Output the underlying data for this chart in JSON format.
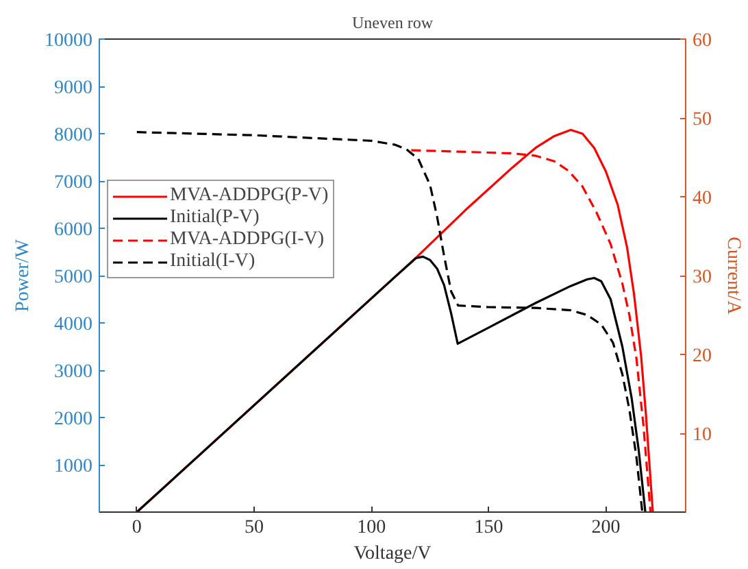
{
  "chart_data": {
    "type": "line",
    "title": "Uneven row",
    "xlabel": "Voltage/V",
    "ylabel": "Power/W",
    "y2label": "Current/A",
    "xlim": [
      -16,
      234
    ],
    "xticks": [
      0,
      50,
      100,
      150,
      200
    ],
    "ylim": [
      0,
      10000
    ],
    "yticks": [
      1000,
      2000,
      3000,
      4000,
      5000,
      6000,
      7000,
      8000,
      9000,
      10000
    ],
    "y2lim": [
      0,
      60
    ],
    "y2ticks": [
      10,
      20,
      30,
      40,
      50,
      60
    ],
    "grid": false,
    "legend": "top left",
    "series": [
      {
        "name": "MVA-ADDPG(P-V)",
        "color": "#ff0000",
        "line_style": "solid",
        "x": [
          0,
          119.5,
          140,
          160,
          170,
          178,
          185,
          190,
          195,
          200,
          205,
          209,
          212,
          215,
          217,
          220
        ],
        "values": [
          0,
          5400,
          6380,
          7280,
          7700,
          7950,
          8080,
          8000,
          7700,
          7200,
          6500,
          5600,
          4600,
          3300,
          2100,
          0
        ]
      },
      {
        "name": "Initial(P-V)",
        "color": "#000000",
        "line_style": "solid",
        "x": [
          0,
          110,
          115,
          119,
          122,
          125,
          128,
          131,
          134,
          136.8,
          150,
          170,
          185,
          192,
          195,
          198,
          202,
          207,
          211,
          214,
          216.8
        ],
        "values": [
          0,
          4970,
          5190,
          5370,
          5400,
          5330,
          5150,
          4800,
          4200,
          3560,
          3900,
          4420,
          4780,
          4920,
          4950,
          4880,
          4500,
          3500,
          2400,
          1300,
          0
        ]
      },
      {
        "name": "MVA-ADDPG(I-V)",
        "color": "#ff0000",
        "line_style": "dashed",
        "axis": "y2",
        "x": [
          117,
          140,
          160,
          170,
          178,
          184,
          190,
          196,
          202,
          207,
          210,
          213,
          216,
          219
        ],
        "values": [
          45.9,
          45.7,
          45.5,
          45.2,
          44.5,
          43.3,
          41.3,
          38,
          34,
          29,
          25,
          19.5,
          11,
          0
        ]
      },
      {
        "name": "Initial(I-V)",
        "color": "#000000",
        "line_style": "dashed",
        "axis": "y2",
        "x": [
          0,
          50,
          100,
          110,
          115,
          120,
          125,
          128,
          131,
          134,
          137,
          150,
          170,
          185,
          192,
          198,
          203,
          207,
          210,
          213,
          215.5
        ],
        "values": [
          48.2,
          47.8,
          47.1,
          46.6,
          46.0,
          44.8,
          41.5,
          37.5,
          32.5,
          28,
          26.2,
          26.0,
          25.9,
          25.6,
          25.0,
          23.8,
          21.5,
          17.5,
          13,
          7,
          0
        ]
      }
    ]
  }
}
